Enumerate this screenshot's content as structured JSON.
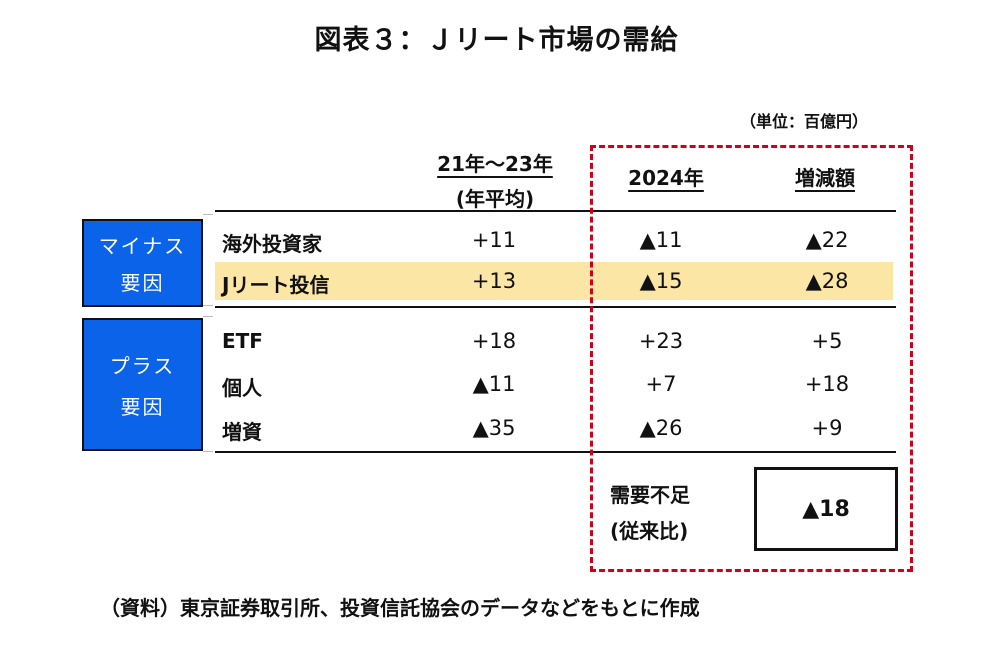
{
  "title": "図表３：Ｊリート市場の需給",
  "unit": "（単位：百億円）",
  "columns": {
    "col1_line1": "21年～23年",
    "col1_line2": "(年平均)",
    "col2": "2024年",
    "col3": "増減額"
  },
  "groups": {
    "minus_line1": "マイナス",
    "minus_line2": "要因",
    "plus_line1": "プラス",
    "plus_line2": "要因"
  },
  "rows": [
    {
      "label": "海外投資家",
      "avg": "+11",
      "y2024": "▲11",
      "change": "▲22",
      "highlight": false
    },
    {
      "label": "Jリート投信",
      "avg": "+13",
      "y2024": "▲15",
      "change": "▲28",
      "highlight": true
    },
    {
      "label": "ETF",
      "avg": "+18",
      "y2024": "+23",
      "change": "+5",
      "highlight": false
    },
    {
      "label": "個人",
      "avg": "▲11",
      "y2024": "+7",
      "change": "+18",
      "highlight": false
    },
    {
      "label": "増資",
      "avg": "▲35",
      "y2024": "▲26",
      "change": "+9",
      "highlight": false
    }
  ],
  "summary": {
    "label_line1": "需要不足",
    "label_line2": "(従来比)",
    "value": "▲18"
  },
  "source": "（資料）東京証券取引所、投資信託協会のデータなどをもとに作成",
  "colors": {
    "tag_blue": "#0a63e8",
    "highlight_band": "#fbe6a6",
    "dashed_box": "#d0001a"
  }
}
